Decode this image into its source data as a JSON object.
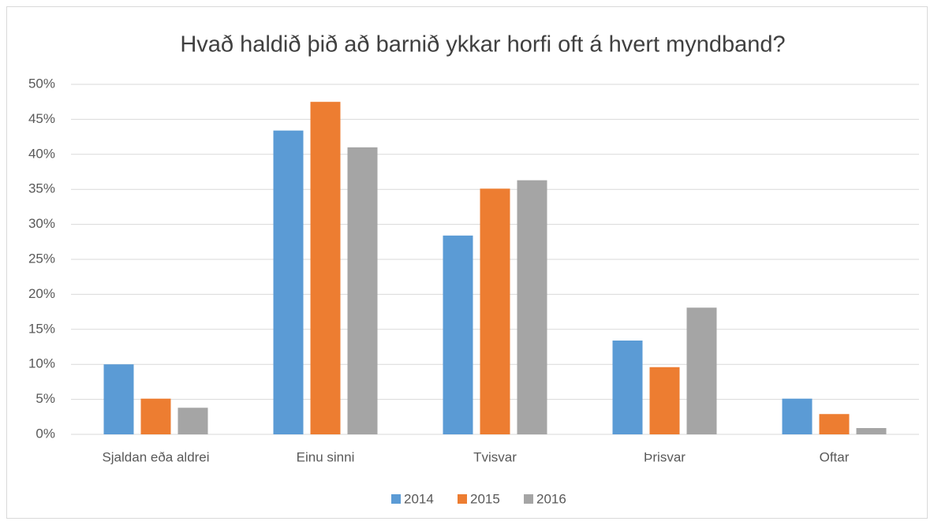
{
  "chart_data": {
    "type": "bar",
    "title": "Hvað haldið þið að barnið ykkar horfi oft á hvert myndband?",
    "categories": [
      "Sjaldan eða aldrei",
      "Einu sinni",
      "Tvisvar",
      "Þrisvar",
      "Oftar"
    ],
    "series": [
      {
        "name": "2014",
        "color": "#5b9bd5",
        "values": [
          10,
          43.4,
          28.4,
          13.4,
          5.1
        ]
      },
      {
        "name": "2015",
        "color": "#ed7d31",
        "values": [
          5.1,
          47.5,
          35.1,
          9.6,
          2.9
        ]
      },
      {
        "name": "2016",
        "color": "#a5a5a5",
        "values": [
          3.8,
          41.0,
          36.3,
          18.1,
          0.9
        ]
      }
    ],
    "ylim": [
      0,
      50
    ],
    "yticks": [
      {
        "value": 0,
        "label": "0%"
      },
      {
        "value": 5,
        "label": "5%"
      },
      {
        "value": 10,
        "label": "10%"
      },
      {
        "value": 15,
        "label": "15%"
      },
      {
        "value": 20,
        "label": "20%"
      },
      {
        "value": 25,
        "label": "25%"
      },
      {
        "value": 30,
        "label": "30%"
      },
      {
        "value": 35,
        "label": "35%"
      },
      {
        "value": 40,
        "label": "40%"
      },
      {
        "value": 45,
        "label": "45%"
      },
      {
        "value": 50,
        "label": "50%"
      }
    ],
    "grid": true,
    "legend": "bottom"
  }
}
